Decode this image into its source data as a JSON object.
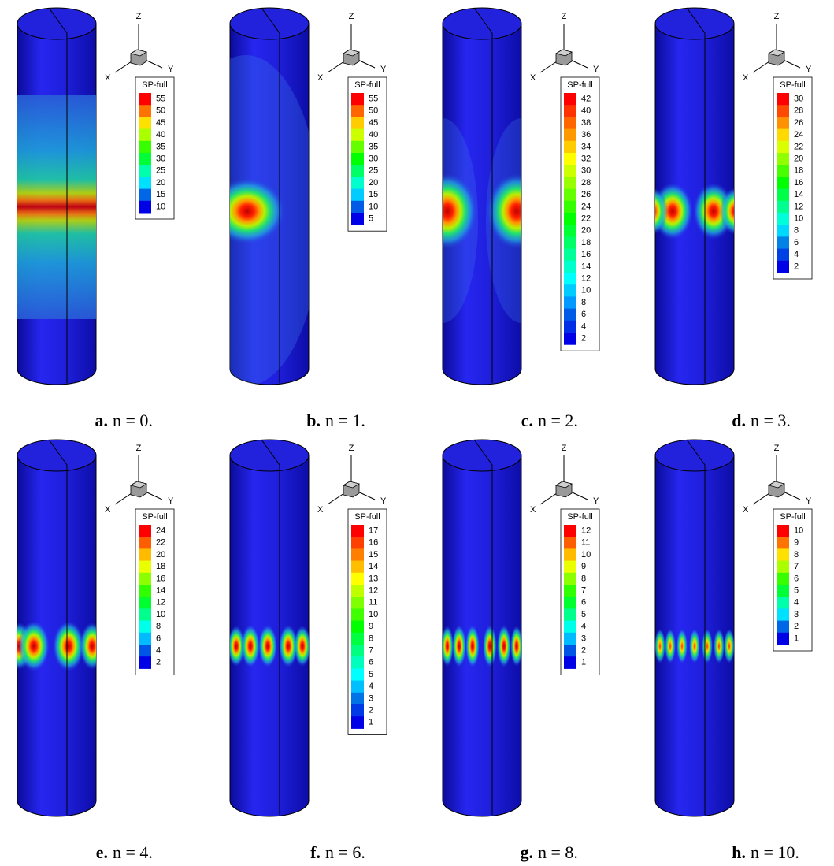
{
  "panels": [
    {
      "letter": "a.",
      "caption": "n = 0.",
      "axes": {
        "z": "Z",
        "y": "Y",
        "x": "X"
      },
      "legend": {
        "title": "SP-full",
        "levels": [
          55,
          50,
          45,
          40,
          35,
          30,
          25,
          20,
          15,
          10
        ]
      }
    },
    {
      "letter": "b.",
      "caption": "n = 1.",
      "axes": {
        "z": "Z",
        "y": "Y",
        "x": "X"
      },
      "legend": {
        "title": "SP-full",
        "levels": [
          55,
          50,
          45,
          40,
          35,
          30,
          25,
          20,
          15,
          10,
          5
        ]
      }
    },
    {
      "letter": "c.",
      "caption": "n = 2.",
      "axes": {
        "z": "Z",
        "y": "Y",
        "x": "X"
      },
      "legend": {
        "title": "SP-full",
        "levels": [
          42,
          40,
          38,
          36,
          34,
          32,
          30,
          28,
          26,
          24,
          22,
          20,
          18,
          16,
          14,
          12,
          10,
          8,
          6,
          4,
          2
        ]
      }
    },
    {
      "letter": "d.",
      "caption": "n = 3.",
      "axes": {
        "z": "Z",
        "y": "Y",
        "x": "X"
      },
      "legend": {
        "title": "SP-full",
        "levels": [
          30,
          28,
          26,
          24,
          22,
          20,
          18,
          16,
          14,
          12,
          10,
          8,
          6,
          4,
          2
        ]
      }
    },
    {
      "letter": "e.",
      "caption": "n = 4.",
      "axes": {
        "z": "Z",
        "y": "Y",
        "x": "X"
      },
      "legend": {
        "title": "SP-full",
        "levels": [
          24,
          22,
          20,
          18,
          16,
          14,
          12,
          10,
          8,
          6,
          4,
          2
        ]
      }
    },
    {
      "letter": "f.",
      "caption": "n = 6.",
      "axes": {
        "z": "Z",
        "y": "Y",
        "x": "X"
      },
      "legend": {
        "title": "SP-full",
        "levels": [
          17,
          16,
          15,
          14,
          13,
          12,
          11,
          10,
          9,
          8,
          7,
          6,
          5,
          4,
          3,
          2,
          1
        ]
      }
    },
    {
      "letter": "g.",
      "caption": "n = 8.",
      "axes": {
        "z": "Z",
        "y": "Y",
        "x": "X"
      },
      "legend": {
        "title": "SP-full",
        "levels": [
          12,
          11,
          10,
          9,
          8,
          7,
          6,
          5,
          4,
          3,
          2,
          1
        ]
      }
    },
    {
      "letter": "h.",
      "caption": "n = 10.",
      "axes": {
        "z": "Z",
        "y": "Y",
        "x": "X"
      },
      "legend": {
        "title": "SP-full",
        "levels": [
          10,
          9,
          8,
          7,
          6,
          5,
          4,
          3,
          2,
          1
        ]
      }
    }
  ]
}
